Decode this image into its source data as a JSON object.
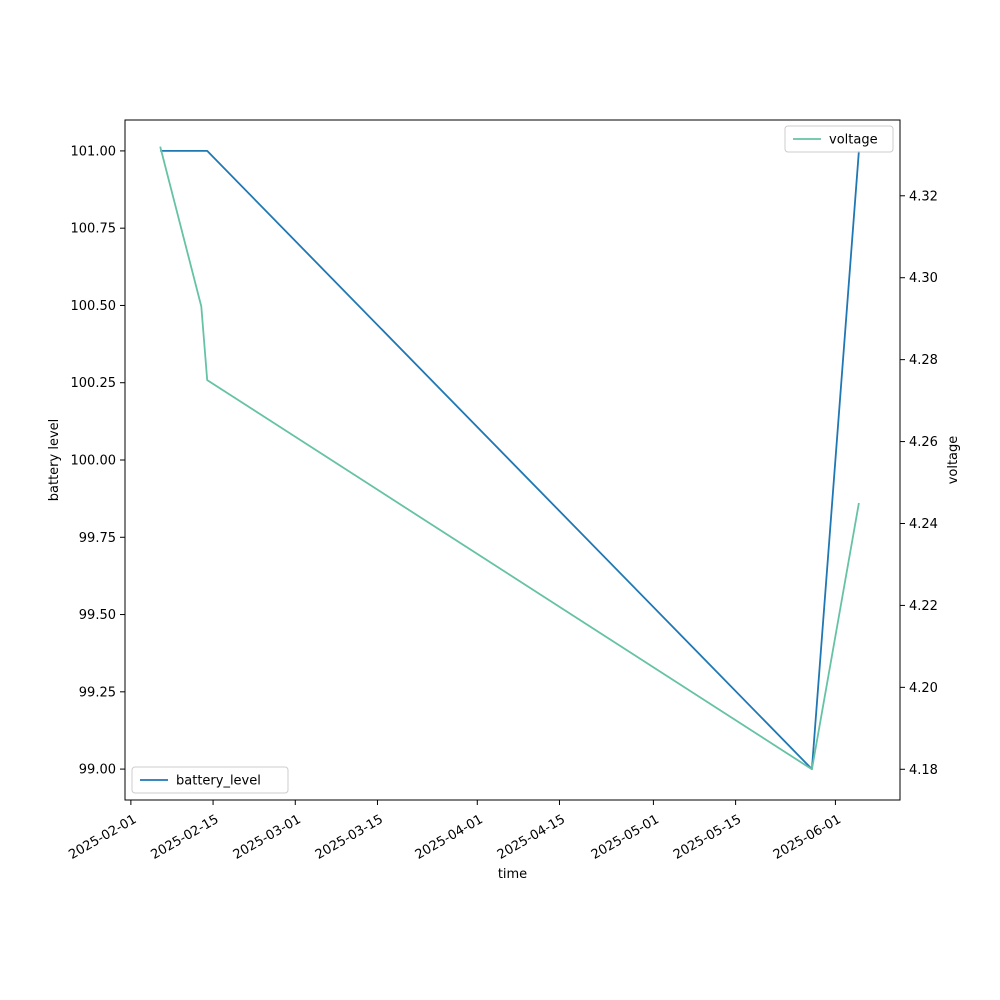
{
  "chart_data": {
    "type": "line",
    "xlabel": "time",
    "ylabel_left": "battery level",
    "ylabel_right": "voltage",
    "x_ticks": [
      "2025-02-01",
      "2025-02-15",
      "2025-03-01",
      "2025-03-15",
      "2025-04-01",
      "2025-04-15",
      "2025-05-01",
      "2025-05-15",
      "2025-06-01"
    ],
    "xlim": [
      "2025-01-31",
      "2025-06-12"
    ],
    "y_left_ticks": [
      "99.00",
      "99.25",
      "99.50",
      "99.75",
      "100.00",
      "100.25",
      "100.50",
      "100.75",
      "101.00"
    ],
    "y_left_lim": [
      98.9,
      101.1
    ],
    "y_right_ticks": [
      "4.18",
      "4.20",
      "4.22",
      "4.24",
      "4.26",
      "4.28",
      "4.30",
      "4.32"
    ],
    "y_right_lim": [
      4.1725,
      4.3385
    ],
    "series": [
      {
        "name": "battery_level",
        "axis": "left",
        "color": "#1f77b4",
        "x": [
          "2025-02-06",
          "2025-02-13",
          "2025-02-14",
          "2025-05-28",
          "2025-06-05"
        ],
        "y": [
          101,
          101,
          101,
          99,
          101
        ]
      },
      {
        "name": "voltage",
        "axis": "right",
        "color": "#66c2a5",
        "x": [
          "2025-02-06",
          "2025-02-13",
          "2025-02-14",
          "2025-05-28",
          "2025-06-05"
        ],
        "y": [
          4.332,
          4.293,
          4.275,
          4.18,
          4.245
        ]
      }
    ],
    "legends": [
      {
        "series": "battery_level",
        "placement": "lower-left"
      },
      {
        "series": "voltage",
        "placement": "upper-right"
      }
    ]
  }
}
